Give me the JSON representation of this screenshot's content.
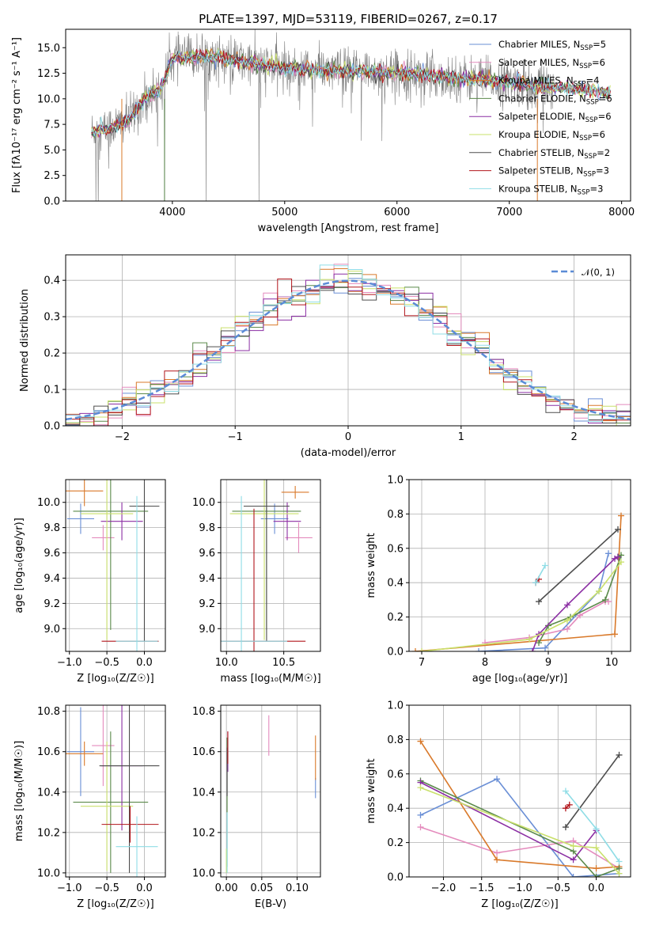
{
  "title": "PLATE=1397, MJD=53119, FIBERID=0267, z=0.17",
  "colors": {
    "chabrier_miles": "#6a8fd6",
    "salpeter_miles": "#e48bbd",
    "kroupa_miles": "#d9792a",
    "chabrier_elodie": "#5b8a4b",
    "salpeter_elodie": "#8b2ea3",
    "kroupa_elodie": "#c9e06b",
    "chabrier_stelib": "#4d4d4d",
    "salpeter_stelib": "#b2161c",
    "kroupa_stelib": "#8fdde6",
    "normal": "#5b8bd6"
  },
  "chart_data": [
    {
      "id": "spectrum",
      "type": "line",
      "title": "PLATE=1397, MJD=53119, FIBERID=0267, z=0.17",
      "xlabel": "wavelength [Angstrom, rest frame]",
      "ylabel": "Flux [fλ10⁻¹⁷ erg cm⁻² s⁻¹ A⁻¹]",
      "xlim": [
        3050,
        8080
      ],
      "ylim": [
        0,
        16.8
      ],
      "xticks": [
        4000,
        5000,
        6000,
        7000,
        8000
      ],
      "yticks": [
        0.0,
        2.5,
        5.0,
        7.5,
        10.0,
        12.5,
        15.0
      ],
      "legend_position": "right",
      "legend": [
        {
          "label": "Chabrier MILES, N",
          "sub": "SSP",
          "suffix": "=5",
          "color": "#6a8fd6"
        },
        {
          "label": "Salpeter MILES, N",
          "sub": "SSP",
          "suffix": "=6",
          "color": "#e48bbd"
        },
        {
          "label": "Kroupa MILES, N",
          "sub": "SSP",
          "suffix": "=4",
          "color": "#d9792a"
        },
        {
          "label": "Chabrier ELODIE, N",
          "sub": "SSP",
          "suffix": "=6",
          "color": "#5b8a4b"
        },
        {
          "label": "Salpeter ELODIE, N",
          "sub": "SSP",
          "suffix": "=6",
          "color": "#8b2ea3"
        },
        {
          "label": "Kroupa ELODIE, N",
          "sub": "SSP",
          "suffix": "=6",
          "color": "#c9e06b"
        },
        {
          "label": "Chabrier STELIB, N",
          "sub": "SSP",
          "suffix": "=2",
          "color": "#4d4d4d"
        },
        {
          "label": "Salpeter STELIB, N",
          "sub": "SSP",
          "suffix": "=3",
          "color": "#b2161c"
        },
        {
          "label": "Kroupa STELIB, N",
          "sub": "SSP",
          "suffix": "=3",
          "color": "#8fdde6"
        }
      ],
      "continuum": [
        [
          3280,
          6.8
        ],
        [
          3400,
          7.0
        ],
        [
          3600,
          7.8
        ],
        [
          3800,
          10.5
        ],
        [
          3900,
          11.0
        ],
        [
          4000,
          14.0
        ],
        [
          4300,
          14.2
        ],
        [
          4500,
          13.8
        ],
        [
          5000,
          13.0
        ],
        [
          5500,
          12.7
        ],
        [
          6000,
          12.6
        ],
        [
          6500,
          12.1
        ],
        [
          7000,
          11.6
        ],
        [
          7400,
          11.2
        ],
        [
          7900,
          10.6
        ]
      ],
      "model_range": [
        3280,
        7900
      ],
      "data_range": [
        3280,
        7400
      ]
    },
    {
      "id": "residuals",
      "type": "histogram",
      "xlabel": "(data-model)/error",
      "ylabel": "Normed distribution",
      "xlim": [
        -2.5,
        2.5
      ],
      "ylim": [
        0,
        0.47
      ],
      "xticks": [
        -2,
        -1,
        0,
        1,
        2
      ],
      "yticks": [
        0.0,
        0.1,
        0.2,
        0.3,
        0.4
      ],
      "bin_width": 0.125,
      "legend": [
        {
          "label": "𝒩(0, 1)",
          "color": "#5b8bd6",
          "style": "dashed"
        }
      ],
      "legend_position": "top-right"
    },
    {
      "id": "age_vs_Z",
      "type": "errorbar",
      "xlabel": "Z [log₁₀(Z/Z☉)]",
      "ylabel": "age  [log₁₀(age/yr)]",
      "xlim": [
        -1.05,
        0.28
      ],
      "ylim": [
        8.82,
        10.18
      ],
      "xticks": [
        -1.0,
        -0.5,
        0.0
      ],
      "yticks": [
        9.0,
        9.2,
        9.4,
        9.6,
        9.8,
        10.0
      ],
      "points": [
        {
          "color": "#6a8fd6",
          "x": -0.85,
          "xerr": 0.18,
          "y": 9.87,
          "yerr": 0.12
        },
        {
          "color": "#e48bbd",
          "x": -0.55,
          "xerr": 0.15,
          "y": 9.72,
          "yerr": 0.1
        },
        {
          "color": "#d9792a",
          "x": -0.8,
          "xerr": 0.25,
          "y": 10.09,
          "yerr": 0.12
        },
        {
          "color": "#5b8a4b",
          "x": -0.45,
          "xerr": 0.5,
          "y": 9.93,
          "yerr": 0.94
        },
        {
          "color": "#8b2ea3",
          "x": -0.3,
          "xerr": 0.28,
          "y": 9.85,
          "yerr": 0.15
        },
        {
          "color": "#c9e06b",
          "x": -0.5,
          "xerr": 0.35,
          "y": 9.91,
          "yerr": 1.0
        },
        {
          "color": "#4d4d4d",
          "x": 0.0,
          "xerr": 0.2,
          "y": 9.97,
          "yerr": 1.07
        },
        {
          "color": "#b2161c",
          "x": -0.19,
          "xerr": 0.38,
          "y": 8.9,
          "yerr": 0.0
        },
        {
          "color": "#8fdde6",
          "x": -0.1,
          "xerr": 0.28,
          "y": 8.9,
          "yerr": 1.15
        }
      ]
    },
    {
      "id": "age_vs_mass",
      "type": "errorbar",
      "xlabel": "mass [log₁₀(M/M☉)]",
      "ylabel": "",
      "xlim": [
        9.95,
        10.82
      ],
      "ylim": [
        8.82,
        10.18
      ],
      "xticks": [
        10.0,
        10.5
      ],
      "yticks": [
        9.0,
        9.2,
        9.4,
        9.6,
        9.8,
        10.0
      ],
      "points": [
        {
          "color": "#6a8fd6",
          "x": 10.42,
          "xerr": 0.12,
          "y": 9.87,
          "yerr": 0.12
        },
        {
          "color": "#e48bbd",
          "x": 10.63,
          "xerr": 0.12,
          "y": 9.72,
          "yerr": 0.12
        },
        {
          "color": "#d9792a",
          "x": 10.6,
          "xerr": 0.12,
          "y": 10.08,
          "yerr": 0.05
        },
        {
          "color": "#5b8a4b",
          "x": 10.35,
          "xerr": 0.3,
          "y": 9.93,
          "yerr": 0.94
        },
        {
          "color": "#8b2ea3",
          "x": 10.53,
          "xerr": 0.12,
          "y": 9.85,
          "yerr": 0.15
        },
        {
          "color": "#c9e06b",
          "x": 10.33,
          "xerr": 0.3,
          "y": 9.91,
          "yerr": 1.0
        },
        {
          "color": "#4d4d4d",
          "x": 10.35,
          "xerr": 0.2,
          "y": 9.97,
          "yerr": 1.07
        },
        {
          "color": "#b2161c",
          "x": 10.24,
          "xerr": 0.45,
          "y": 8.9,
          "yerr": 1.05
        },
        {
          "color": "#8fdde6",
          "x": 10.13,
          "xerr": 0.4,
          "y": 8.9,
          "yerr": 1.15
        }
      ]
    },
    {
      "id": "mass_vs_Z",
      "type": "errorbar",
      "xlabel": "Z [log₁₀(Z/Z☉)]",
      "ylabel": "mass [log₁₀(M/M☉)]",
      "xlim": [
        -1.05,
        0.28
      ],
      "ylim": [
        9.98,
        10.83
      ],
      "xticks": [
        -1.0,
        -0.5,
        0.0
      ],
      "yticks": [
        10.0,
        10.2,
        10.4,
        10.6,
        10.8
      ],
      "points": [
        {
          "color": "#6a8fd6",
          "x": -0.85,
          "xerr": 0.18,
          "y": 10.6,
          "yerr": 0.22
        },
        {
          "color": "#e48bbd",
          "x": -0.55,
          "xerr": 0.15,
          "y": 10.63,
          "yerr": 0.2
        },
        {
          "color": "#d9792a",
          "x": -0.8,
          "xerr": 0.25,
          "y": 10.59,
          "yerr": 0.06
        },
        {
          "color": "#5b8a4b",
          "x": -0.45,
          "xerr": 0.5,
          "y": 10.35,
          "yerr": 0.35
        },
        {
          "color": "#8b2ea3",
          "x": -0.3,
          "xerr": 0.28,
          "y": 10.53,
          "yerr": 0.32
        },
        {
          "color": "#c9e06b",
          "x": -0.5,
          "xerr": 0.35,
          "y": 10.33,
          "yerr": 0.32
        },
        {
          "color": "#4d4d4d",
          "x": -0.2,
          "xerr": 0.4,
          "y": 10.53,
          "yerr": 0.53
        },
        {
          "color": "#b2161c",
          "x": -0.19,
          "xerr": 0.38,
          "y": 10.24,
          "yerr": 0.09
        },
        {
          "color": "#8fdde6",
          "x": -0.1,
          "xerr": 0.28,
          "y": 10.13,
          "yerr": 0.15
        }
      ]
    },
    {
      "id": "mass_vs_ebv",
      "type": "errorbar",
      "xlabel": "E(B-V)",
      "ylabel": "",
      "xlim": [
        -0.008,
        0.133
      ],
      "ylim": [
        9.98,
        10.83
      ],
      "xticks": [
        0.0,
        0.05,
        0.1
      ],
      "tick_labels": [
        "0.00",
        "0.05",
        "0.10"
      ],
      "yticks": [
        10.0,
        10.2,
        10.4,
        10.6,
        10.8
      ],
      "points": [
        {
          "color": "#6a8fd6",
          "x": 0.126,
          "xerr": 0,
          "y": 10.42,
          "yerr": 0.05
        },
        {
          "color": "#e48bbd",
          "x": 0.06,
          "xerr": 0,
          "y": 10.68,
          "yerr": 0.1
        },
        {
          "color": "#d9792a",
          "x": 0.126,
          "xerr": 0,
          "y": 10.57,
          "yerr": 0.11
        },
        {
          "color": "#5b8a4b",
          "x": 0.001,
          "xerr": 0,
          "y": 10.35,
          "yerr": 0.32
        },
        {
          "color": "#8b2ea3",
          "x": 0.002,
          "xerr": 0,
          "y": 10.6,
          "yerr": 0.1
        },
        {
          "color": "#c9e06b",
          "x": 0.0,
          "xerr": 0,
          "y": 10.06,
          "yerr": 0.06
        },
        {
          "color": "#4d4d4d",
          "x": 0.001,
          "xerr": 0,
          "y": 10.5,
          "yerr": 0.12
        },
        {
          "color": "#b2161c",
          "x": 0.002,
          "xerr": 0,
          "y": 10.62,
          "yerr": 0.08
        },
        {
          "color": "#8fdde6",
          "x": 0.001,
          "xerr": 0,
          "y": 10.15,
          "yerr": 0.15
        }
      ]
    },
    {
      "id": "weight_vs_age",
      "type": "line",
      "marker": "+",
      "xlabel": "age  [log₁₀(age/yr)]",
      "ylabel": "mass weight",
      "xlim": [
        6.8,
        10.3
      ],
      "ylim": [
        0,
        1.0
      ],
      "xticks": [
        7,
        8,
        9,
        10
      ],
      "yticks": [
        0.0,
        0.2,
        0.4,
        0.6,
        0.8,
        1.0
      ],
      "series": [
        {
          "color": "#6a8fd6",
          "points": [
            [
              7.9,
              0.0
            ],
            [
              8.95,
              0.02
            ],
            [
              9.8,
              0.35
            ],
            [
              9.95,
              0.57
            ]
          ]
        },
        {
          "color": "#e48bbd",
          "points": [
            [
              8.0,
              0.05
            ],
            [
              8.7,
              0.08
            ],
            [
              9.3,
              0.13
            ],
            [
              9.5,
              0.21
            ],
            [
              9.9,
              0.29
            ],
            [
              9.95,
              0.29
            ]
          ]
        },
        {
          "color": "#d9792a",
          "points": [
            [
              6.9,
              0.0
            ],
            [
              10.05,
              0.1
            ],
            [
              10.15,
              0.79
            ]
          ]
        },
        {
          "color": "#5b8a4b",
          "points": [
            [
              8.85,
              0.05
            ],
            [
              9.0,
              0.15
            ],
            [
              9.35,
              0.2
            ],
            [
              9.9,
              0.3
            ],
            [
              10.15,
              0.56
            ],
            [
              10.1,
              0.55
            ]
          ]
        },
        {
          "color": "#8b2ea3",
          "points": [
            [
              8.75,
              0.0
            ],
            [
              8.85,
              0.1
            ],
            [
              9.3,
              0.27
            ],
            [
              10.05,
              0.54
            ],
            [
              10.1,
              0.55
            ]
          ]
        },
        {
          "color": "#c9e06b",
          "points": [
            [
              7.0,
              0.0
            ],
            [
              8.7,
              0.07
            ],
            [
              9.3,
              0.18
            ],
            [
              9.8,
              0.35
            ],
            [
              10.15,
              0.52
            ]
          ]
        },
        {
          "color": "#4d4d4d",
          "points": [
            [
              8.85,
              0.29
            ],
            [
              10.1,
              0.71
            ]
          ]
        },
        {
          "color": "#b2161c",
          "points": [
            [
              8.8,
              0.4
            ],
            [
              8.85,
              0.42
            ]
          ]
        },
        {
          "color": "#8fdde6",
          "points": [
            [
              8.8,
              0.4
            ],
            [
              8.95,
              0.5
            ]
          ]
        }
      ]
    },
    {
      "id": "weight_vs_Z",
      "type": "line",
      "marker": "+",
      "xlabel": "Z [log₁₀(Z/Z☉)]",
      "ylabel": "mass weight",
      "xlim": [
        -2.45,
        0.45
      ],
      "ylim": [
        0,
        1.0
      ],
      "xticks": [
        -2.0,
        -1.5,
        -1.0,
        -0.5,
        0.0
      ],
      "yticks": [
        0.0,
        0.2,
        0.4,
        0.6,
        0.8,
        1.0
      ],
      "series": [
        {
          "color": "#6a8fd6",
          "points": [
            [
              -2.3,
              0.36
            ],
            [
              -1.3,
              0.57
            ],
            [
              -0.3,
              0.0
            ],
            [
              0.3,
              0.02
            ]
          ]
        },
        {
          "color": "#e48bbd",
          "points": [
            [
              -2.3,
              0.29
            ],
            [
              -1.3,
              0.14
            ],
            [
              -0.3,
              0.21
            ],
            [
              0.3,
              0.05
            ]
          ]
        },
        {
          "color": "#d9792a",
          "points": [
            [
              -2.3,
              0.79
            ],
            [
              -1.3,
              0.1
            ],
            [
              0.0,
              0.05
            ],
            [
              0.3,
              0.06
            ]
          ]
        },
        {
          "color": "#5b8a4b",
          "points": [
            [
              -2.3,
              0.56
            ],
            [
              -0.3,
              0.15
            ],
            [
              0.0,
              0.0
            ],
            [
              0.3,
              0.05
            ]
          ]
        },
        {
          "color": "#8b2ea3",
          "points": [
            [
              -2.3,
              0.55
            ],
            [
              -0.3,
              0.1
            ],
            [
              0.0,
              0.27
            ]
          ]
        },
        {
          "color": "#c9e06b",
          "points": [
            [
              -2.3,
              0.52
            ],
            [
              -0.3,
              0.18
            ],
            [
              0.0,
              0.17
            ],
            [
              0.3,
              0.02
            ]
          ]
        },
        {
          "color": "#4d4d4d",
          "points": [
            [
              -0.4,
              0.29
            ],
            [
              0.3,
              0.71
            ]
          ]
        },
        {
          "color": "#b2161c",
          "points": [
            [
              -0.4,
              0.4
            ],
            [
              -0.35,
              0.42
            ]
          ]
        },
        {
          "color": "#8fdde6",
          "points": [
            [
              -0.4,
              0.5
            ],
            [
              0.0,
              0.28
            ],
            [
              0.3,
              0.09
            ]
          ]
        }
      ]
    }
  ]
}
